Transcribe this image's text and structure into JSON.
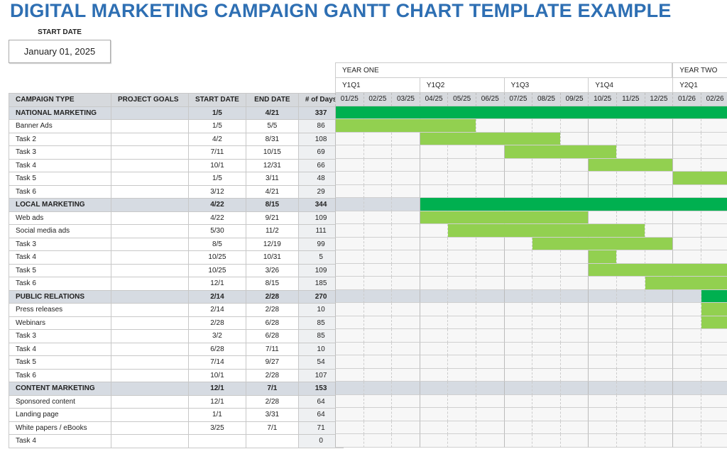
{
  "title": "DIGITAL MARKETING CAMPAIGN GANTT CHART TEMPLATE EXAMPLE",
  "start_date": {
    "label": "START DATE",
    "value": "January 01, 2025"
  },
  "years": [
    {
      "label": "YEAR ONE",
      "months": 12
    },
    {
      "label": "YEAR TWO",
      "months": 2
    }
  ],
  "quarters": [
    "Y1Q1",
    "Y1Q2",
    "Y1Q3",
    "Y1Q4",
    "Y2Q1"
  ],
  "months": [
    "01/25",
    "02/25",
    "03/25",
    "04/25",
    "05/25",
    "06/25",
    "07/25",
    "08/25",
    "09/25",
    "10/25",
    "11/25",
    "12/25",
    "01/26",
    "02/26"
  ],
  "columns": [
    "CAMPAIGN TYPE",
    "PROJECT GOALS",
    "START DATE",
    "END DATE",
    "# of Days"
  ],
  "colors": {
    "group_bar": "#00b050",
    "task_bar": "#92d050",
    "group_row": "#d6dbe2",
    "title": "#2e6fb3"
  },
  "rows": [
    {
      "name": "NATIONAL MARKETING",
      "goals": "",
      "start": "1/5",
      "end": "4/21",
      "days": "337",
      "group": true,
      "bar": [
        "01/25",
        "02/26"
      ]
    },
    {
      "name": "Banner Ads",
      "goals": "",
      "start": "1/5",
      "end": "5/5",
      "days": "86",
      "bar": [
        "01/25",
        "05/25"
      ]
    },
    {
      "name": "Task 2",
      "goals": "",
      "start": "4/2",
      "end": "8/31",
      "days": "108",
      "bar": [
        "04/25",
        "08/25"
      ]
    },
    {
      "name": "Task 3",
      "goals": "",
      "start": "7/11",
      "end": "10/15",
      "days": "69",
      "bar": [
        "07/25",
        "10/25"
      ]
    },
    {
      "name": "Task 4",
      "goals": "",
      "start": "10/1",
      "end": "12/31",
      "days": "66",
      "bar": [
        "10/25",
        "12/25"
      ]
    },
    {
      "name": "Task 5",
      "goals": "",
      "start": "1/5",
      "end": "3/11",
      "days": "48",
      "bar": [
        "01/26",
        "02/26"
      ]
    },
    {
      "name": "Task 6",
      "goals": "",
      "start": "3/12",
      "end": "4/21",
      "days": "29"
    },
    {
      "name": "LOCAL MARKETING",
      "goals": "",
      "start": "4/22",
      "end": "8/15",
      "days": "344",
      "group": true,
      "bar": [
        "04/25",
        "02/26"
      ]
    },
    {
      "name": "Web ads",
      "goals": "",
      "start": "4/22",
      "end": "9/21",
      "days": "109",
      "bar": [
        "04/25",
        "09/25"
      ]
    },
    {
      "name": "Social media ads",
      "goals": "",
      "start": "5/30",
      "end": "11/2",
      "days": "111",
      "bar": [
        "05/25",
        "11/25"
      ]
    },
    {
      "name": "Task 3",
      "goals": "",
      "start": "8/5",
      "end": "12/19",
      "days": "99",
      "bar": [
        "08/25",
        "12/25"
      ]
    },
    {
      "name": "Task 4",
      "goals": "",
      "start": "10/25",
      "end": "10/31",
      "days": "5",
      "bar": [
        "10/25",
        "10/25"
      ]
    },
    {
      "name": "Task 5",
      "goals": "",
      "start": "10/25",
      "end": "3/26",
      "days": "109",
      "bar": [
        "10/25",
        "02/26"
      ]
    },
    {
      "name": "Task 6",
      "goals": "",
      "start": "12/1",
      "end": "8/15",
      "days": "185",
      "bar": [
        "12/25",
        "02/26"
      ]
    },
    {
      "name": "PUBLIC RELATIONS",
      "goals": "",
      "start": "2/14",
      "end": "2/28",
      "days": "270",
      "group": true,
      "bar": [
        "02/26",
        "02/26"
      ]
    },
    {
      "name": "Press releases",
      "goals": "",
      "start": "2/14",
      "end": "2/28",
      "days": "10",
      "bar": [
        "02/26",
        "02/26"
      ]
    },
    {
      "name": "Webinars",
      "goals": "",
      "start": "2/28",
      "end": "6/28",
      "days": "85",
      "bar": [
        "02/26",
        "02/26"
      ]
    },
    {
      "name": "Task 3",
      "goals": "",
      "start": "3/2",
      "end": "6/28",
      "days": "85"
    },
    {
      "name": "Task 4",
      "goals": "",
      "start": "6/28",
      "end": "7/11",
      "days": "10"
    },
    {
      "name": "Task 5",
      "goals": "",
      "start": "7/14",
      "end": "9/27",
      "days": "54"
    },
    {
      "name": "Task 6",
      "goals": "",
      "start": "10/1",
      "end": "2/28",
      "days": "107"
    },
    {
      "name": "CONTENT MARKETING",
      "goals": "",
      "start": "12/1",
      "end": "7/1",
      "days": "153",
      "group": true
    },
    {
      "name": "Sponsored content",
      "goals": "",
      "start": "12/1",
      "end": "2/28",
      "days": "64"
    },
    {
      "name": "Landing page",
      "goals": "",
      "start": "1/1",
      "end": "3/31",
      "days": "64"
    },
    {
      "name": "White papers / eBooks",
      "goals": "",
      "start": "3/25",
      "end": "7/1",
      "days": "71"
    },
    {
      "name": "Task 4",
      "goals": "",
      "start": "",
      "end": "",
      "days": "0"
    }
  ]
}
